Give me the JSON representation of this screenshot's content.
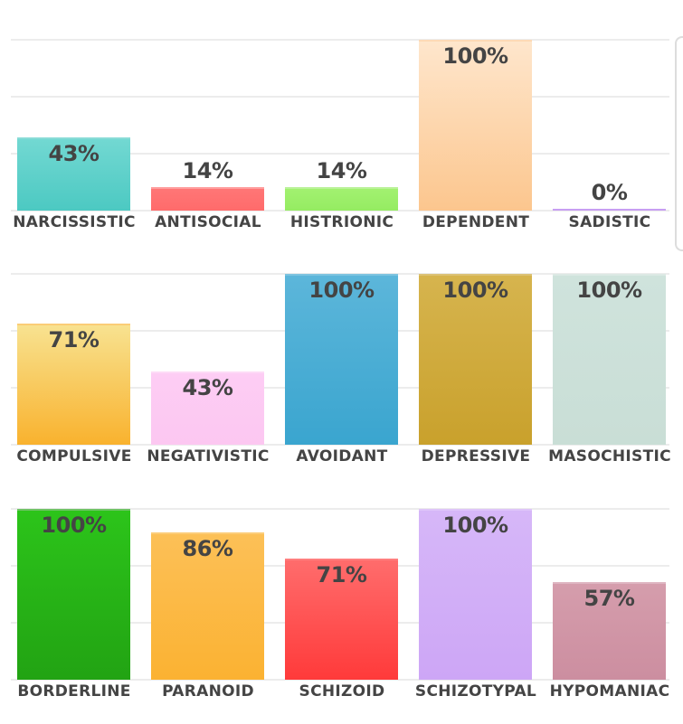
{
  "chart_data": [
    {
      "type": "bar",
      "ylim": [
        0,
        100
      ],
      "categories": [
        "NARCISSISTIC",
        "ANTISOCIAL",
        "HISTRIONIC",
        "DEPENDENT",
        "SADISTIC"
      ],
      "values": [
        43,
        14,
        14,
        100,
        0
      ],
      "labels": [
        "43%",
        "14%",
        "14%",
        "100%",
        "0%"
      ],
      "colors": [
        [
          "#72d8d2",
          "#4cc9c2"
        ],
        [
          "#ff7676",
          "#ff6b6b"
        ],
        [
          "#a2f170",
          "#95ec62"
        ],
        [
          "#fee6cc",
          "#fcc68e"
        ],
        [
          "#c89ff2",
          "#c89ff2"
        ]
      ],
      "grid": true
    },
    {
      "type": "bar",
      "ylim": [
        0,
        100
      ],
      "categories": [
        "COMPULSIVE",
        "NEGATIVISTIC",
        "AVOIDANT",
        "DEPRESSIVE",
        "MASOCHISTIC"
      ],
      "values": [
        71,
        43,
        100,
        100,
        100
      ],
      "labels": [
        "71%",
        "43%",
        "100%",
        "100%",
        "100%"
      ],
      "colors": [
        [
          "#f8e290",
          "#f9b22e"
        ],
        [
          "#fdcdf4",
          "#fcc7f1"
        ],
        [
          "#5cb6da",
          "#3aa5cf"
        ],
        [
          "#d6b44e",
          "#c9a12c"
        ],
        [
          "#cfe3dc",
          "#c9ded6"
        ]
      ],
      "grid": true
    },
    {
      "type": "bar",
      "ylim": [
        0,
        100
      ],
      "categories": [
        "BORDERLINE",
        "PARANOID",
        "SCHIZOID",
        "SCHIZOTYPAL",
        "HYPOMANIAC"
      ],
      "values": [
        100,
        86,
        71,
        100,
        57
      ],
      "labels": [
        "100%",
        "86%",
        "71%",
        "100%",
        "57%"
      ],
      "colors": [
        [
          "#2cc41a",
          "#22a313"
        ],
        [
          "#fcc057",
          "#fbb232"
        ],
        [
          "#ff6c6c",
          "#ff3a3a"
        ],
        [
          "#d6b7f8",
          "#cda6f6"
        ],
        [
          "#d59dac",
          "#cc8ea0"
        ]
      ],
      "grid": true
    }
  ]
}
